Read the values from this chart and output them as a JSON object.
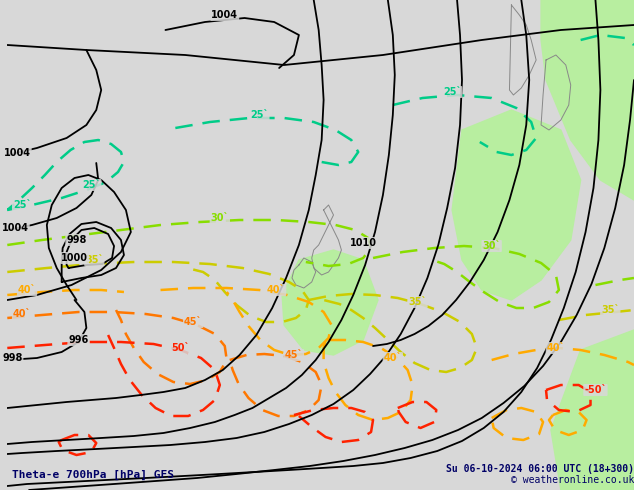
{
  "title_left": "Theta-e 700hPa [hPa] GFS",
  "title_right": "Su 06-10-2024 06:00 UTC (18+300)",
  "copyright": "© weatheronline.co.uk",
  "bg_color": "#d8d8d8",
  "figsize": [
    6.34,
    4.9
  ],
  "dpi": 100,
  "colors": {
    "c25": "#00cc88",
    "c30": "#88dd00",
    "c35": "#cccc00",
    "c40": "#ffaa00",
    "c45": "#ff7700",
    "c50": "#ff2200",
    "pressure": "#000000",
    "coast": "#888888",
    "green_land": "#b8eea0"
  }
}
